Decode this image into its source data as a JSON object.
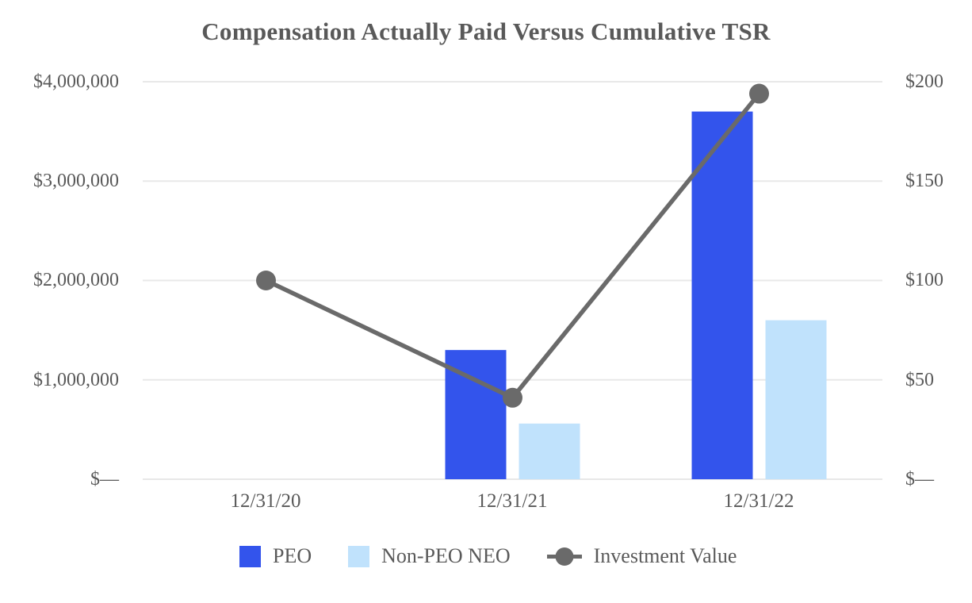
{
  "chart_data": {
    "type": "bar",
    "title": "Compensation Actually Paid Versus Cumulative TSR",
    "categories": [
      "12/31/20",
      "12/31/21",
      "12/31/22"
    ],
    "series": [
      {
        "name": "PEO",
        "kind": "bar",
        "axis": "left",
        "color": "#3354ec",
        "values": [
          null,
          1300000,
          3700000
        ]
      },
      {
        "name": "Non-PEO NEO",
        "kind": "bar",
        "axis": "left",
        "color": "#c0e2fc",
        "values": [
          null,
          560000,
          1600000
        ]
      },
      {
        "name": "Investment Value",
        "kind": "line",
        "axis": "right",
        "color": "#6a6a6a",
        "values": [
          100,
          41,
          194
        ]
      }
    ],
    "left_axis": {
      "min": 0,
      "max": 4000000,
      "ticks": [
        "$4,000,000",
        "$3,000,000",
        "$2,000,000",
        "$1,000,000",
        "$—"
      ]
    },
    "right_axis": {
      "min": 0,
      "max": 200,
      "ticks": [
        "$200",
        "$150",
        "$100",
        "$50",
        "$—"
      ]
    },
    "grid": true,
    "gridline_color": "#e8e8e8",
    "legend_position": "bottom",
    "text_color": "#595959"
  }
}
